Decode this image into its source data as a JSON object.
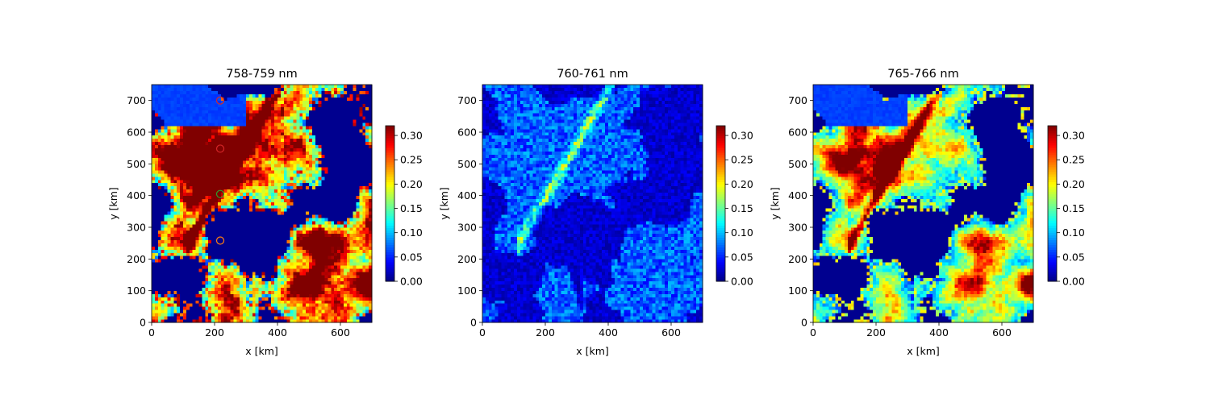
{
  "chart_data": [
    {
      "type": "heatmap",
      "title": "758-759 nm",
      "xlabel": "x [km]",
      "ylabel": "y [km]",
      "xlim": [
        0,
        700
      ],
      "ylim": [
        0,
        750
      ],
      "xticks": [
        "0",
        "200",
        "400",
        "600"
      ],
      "yticks": [
        "0",
        "100",
        "200",
        "300",
        "400",
        "500",
        "600",
        "700"
      ],
      "colormap": "jet",
      "clim": [
        0,
        0.32
      ],
      "colorbar_ticks": [
        "0.00",
        "0.05",
        "0.10",
        "0.15",
        "0.20",
        "0.25",
        "0.30"
      ],
      "markers": [
        {
          "x": 218,
          "y": 700,
          "color": "#d62728"
        },
        {
          "x": 218,
          "y": 548,
          "color": "#d62728"
        },
        {
          "x": 218,
          "y": 405,
          "color": "#2ca02c"
        },
        {
          "x": 218,
          "y": 258,
          "color": "#ff7f0e"
        }
      ]
    },
    {
      "type": "heatmap",
      "title": "760-761 nm",
      "xlabel": "x [km]",
      "ylabel": "y [km]",
      "xlim": [
        0,
        700
      ],
      "ylim": [
        0,
        750
      ],
      "xticks": [
        "0",
        "200",
        "400",
        "600"
      ],
      "yticks": [
        "0",
        "100",
        "200",
        "300",
        "400",
        "500",
        "600",
        "700"
      ],
      "colormap": "jet",
      "clim": [
        0,
        0.32
      ],
      "colorbar_ticks": [
        "0.00",
        "0.05",
        "0.10",
        "0.15",
        "0.20",
        "0.25",
        "0.30"
      ],
      "markers": []
    },
    {
      "type": "heatmap",
      "title": "765-766 nm",
      "xlabel": "x [km]",
      "ylabel": "y [km]",
      "xlim": [
        0,
        700
      ],
      "ylim": [
        0,
        750
      ],
      "xticks": [
        "0",
        "200",
        "400",
        "600"
      ],
      "yticks": [
        "0",
        "100",
        "200",
        "300",
        "400",
        "500",
        "600",
        "700"
      ],
      "colormap": "jet",
      "clim": [
        0,
        0.32
      ],
      "colorbar_ticks": [
        "0.00",
        "0.05",
        "0.10",
        "0.15",
        "0.20",
        "0.25",
        "0.30"
      ],
      "markers": []
    }
  ]
}
